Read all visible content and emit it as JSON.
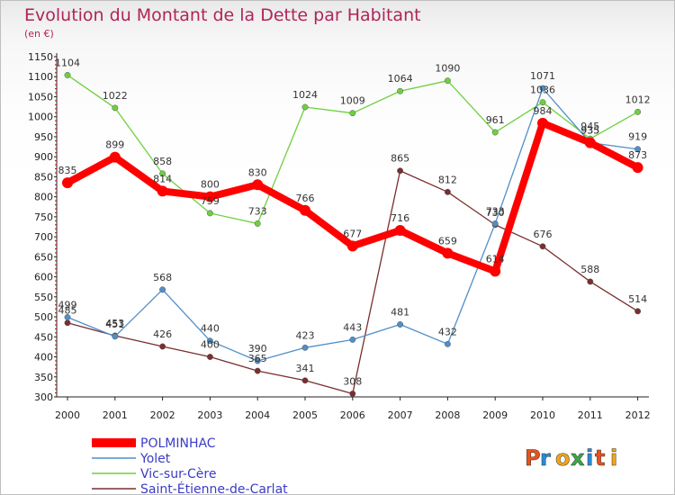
{
  "chart_data": {
    "type": "line",
    "title": "Evolution du Montant de la Dette par Habitant",
    "subtitle": "(en €)",
    "xlabel": "",
    "ylabel": "",
    "categories": [
      "2000",
      "2001",
      "2002",
      "2003",
      "2004",
      "2005",
      "2006",
      "2007",
      "2008",
      "2009",
      "2010",
      "2011",
      "2012"
    ],
    "ylim": [
      300,
      1150
    ],
    "yticks": [
      300,
      350,
      400,
      450,
      500,
      550,
      600,
      650,
      700,
      750,
      800,
      850,
      900,
      950,
      1000,
      1050,
      1100,
      1150
    ],
    "grid": false,
    "legend_position": "bottom-left",
    "series": [
      {
        "name": "POLMINHAC",
        "color": "#ff0000",
        "values": [
          835,
          899,
          814,
          800,
          830,
          766,
          677,
          716,
          659,
          614,
          984,
          935,
          873
        ]
      },
      {
        "name": "Yolet",
        "color": "#4f8fc9",
        "values": [
          499,
          451,
          568,
          440,
          390,
          423,
          443,
          481,
          432,
          733,
          1071,
          935,
          919
        ]
      },
      {
        "name": "Vic-sur-Cère",
        "color": "#6fcf3f",
        "values": [
          1104,
          1022,
          858,
          759,
          733,
          1024,
          1009,
          1064,
          1090,
          961,
          1036,
          945,
          1012
        ]
      },
      {
        "name": "Saint-Étienne-de-Carlat",
        "color": "#7a2e2e",
        "values": [
          485,
          453,
          426,
          400,
          365,
          341,
          308,
          865,
          812,
          730,
          676,
          588,
          514
        ]
      }
    ]
  },
  "logo": {
    "text": "Proxiti",
    "letter_colors": [
      "#e8521c",
      "#2a8bd6",
      "#f2a51a",
      "#3aa845",
      "#2a8bd6",
      "#e8521c",
      "#f2a51a"
    ]
  }
}
